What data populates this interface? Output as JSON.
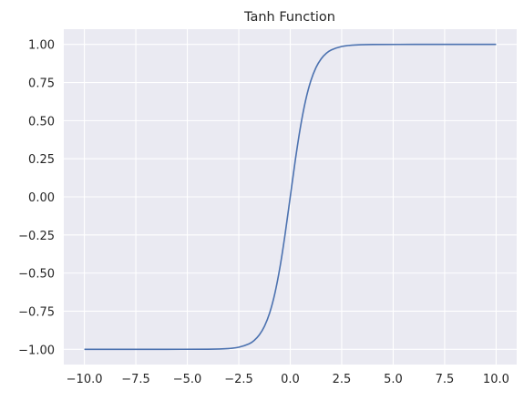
{
  "chart_data": {
    "type": "line",
    "title": "Tanh Function",
    "xlabel": "",
    "ylabel": "",
    "xlim": [
      -11,
      11
    ],
    "ylim": [
      -1.1,
      1.1
    ],
    "grid": true,
    "legend": "none",
    "colors": {
      "background": "#eaeaf2",
      "grid": "#ffffff",
      "line": "#4c72b0",
      "text": "#262626"
    },
    "x_ticks": [
      -10.0,
      -7.5,
      -5.0,
      -2.5,
      0.0,
      2.5,
      5.0,
      7.5,
      10.0
    ],
    "x_tick_labels": [
      "−10.0",
      "−7.5",
      "−5.0",
      "−2.5",
      "0.0",
      "2.5",
      "5.0",
      "7.5",
      "10.0"
    ],
    "y_ticks": [
      1.0,
      0.75,
      0.5,
      0.25,
      0.0,
      -0.25,
      -0.5,
      -0.75,
      -1.0
    ],
    "y_tick_labels": [
      "1.00",
      "0.75",
      "0.50",
      "0.25",
      "0.00",
      "−0.25",
      "−0.50",
      "−0.75",
      "−1.00"
    ],
    "series": [
      {
        "x": [
          -10,
          -8,
          -6,
          -4,
          -3,
          -2.5,
          -2,
          -1.75,
          -1.5,
          -1.25,
          -1,
          -0.75,
          -0.5,
          -0.25,
          0,
          0.25,
          0.5,
          0.75,
          1,
          1.25,
          1.5,
          1.75,
          2,
          2.5,
          3,
          4,
          6,
          8,
          10
        ],
        "y": [
          -1.0,
          -1.0,
          -1.0,
          -0.9993,
          -0.9951,
          -0.9866,
          -0.964,
          -0.9414,
          -0.9051,
          -0.8483,
          -0.7616,
          -0.6351,
          -0.4621,
          -0.2449,
          0.0,
          0.2449,
          0.4621,
          0.6351,
          0.7616,
          0.8483,
          0.9051,
          0.9414,
          0.964,
          0.9866,
          0.9951,
          0.9993,
          1.0,
          1.0,
          1.0
        ]
      }
    ]
  }
}
